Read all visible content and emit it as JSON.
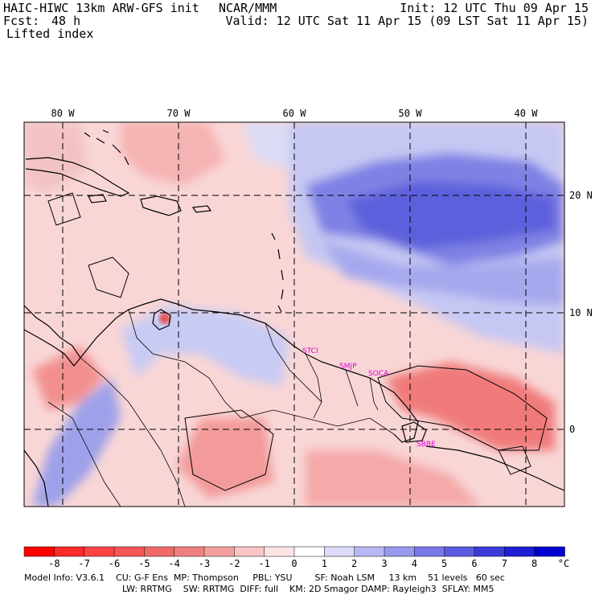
{
  "header": {
    "model": "HAIC-HIWC 13km ARW-GFS init",
    "center": "NCAR/MMM",
    "init": "Init: 12 UTC Thu 09 Apr 15",
    "fcst_label": "Fcst:",
    "fcst_value": "48 h",
    "valid": "Valid: 12 UTC Sat 11 Apr 15 (09 LST Sat 11 Apr 15)",
    "field": "Lifted index"
  },
  "map": {
    "lon_labels": [
      "80 W",
      "70 W",
      "60 W",
      "50 W",
      "40 W"
    ],
    "lat_labels": [
      "20 N",
      "10 N",
      "0"
    ],
    "place_labels": [
      "STCI",
      "SMJP",
      "SOCA",
      "SBBE"
    ]
  },
  "colorbar": {
    "ticks": [
      "-8",
      "-7",
      "-6",
      "-5",
      "-4",
      "-3",
      "-2",
      "-1",
      "0",
      "1",
      "2",
      "3",
      "4",
      "5",
      "6",
      "7",
      "8"
    ],
    "unit": "°C",
    "colors": [
      "#ff0000",
      "#ff2a2a",
      "#ff4444",
      "#f65656",
      "#f06a6a",
      "#f08080",
      "#f4a0a0",
      "#f8c4c4",
      "#fde4e4",
      "#ffffff",
      "#dcdcf8",
      "#b8b8f4",
      "#9898ee",
      "#7878e8",
      "#5a5ae2",
      "#3c3cdc",
      "#1e1ed6",
      "#0000d0"
    ]
  },
  "footer": {
    "line1": "Model Info: V3.6.1    CU: G-F Ens  MP: Thompson     PBL: YSU        SF: Noah LSM     13 km    51 levels   60 sec",
    "line2": "LW: RRTMG    SW: RRTMG  DIFF: full    KM: 2D Smagor DAMP: Rayleigh3  SFLAY: MM5"
  }
}
